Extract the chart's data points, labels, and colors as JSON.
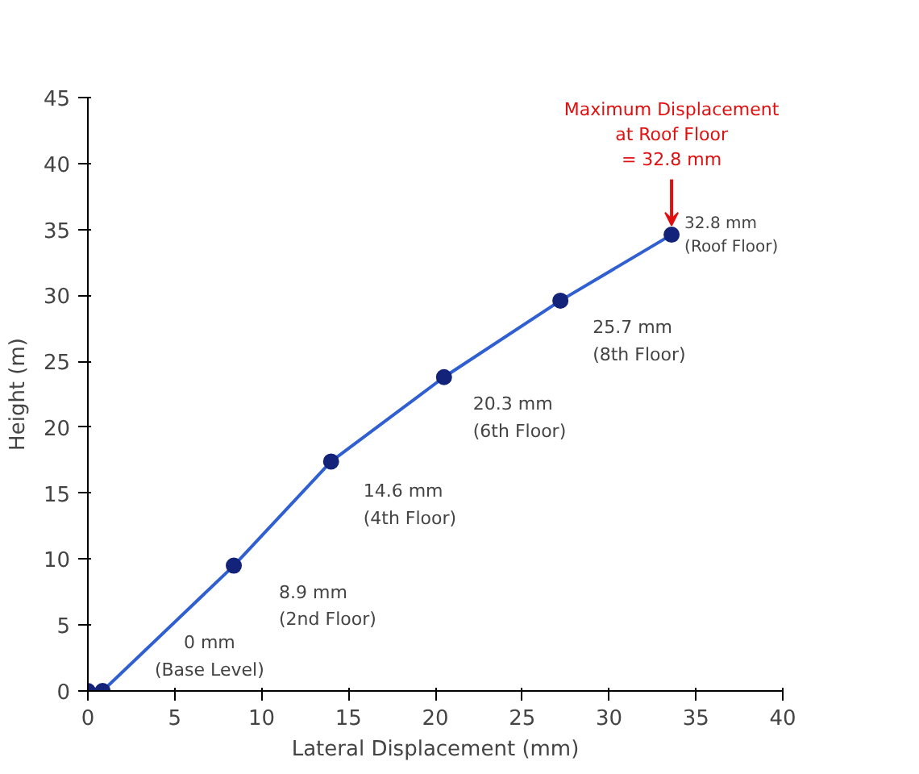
{
  "chart_data": {
    "type": "line",
    "xlabel": "Lateral Displacement (mm)",
    "ylabel": "Height (m)",
    "x": [
      0,
      0.85,
      8.4,
      14.0,
      20.5,
      27.2,
      33.6
    ],
    "series": [
      {
        "color": "#2f5fd0",
        "values": [
          0,
          0,
          9.5,
          17.4,
          23.8,
          29.6,
          34.6
        ]
      }
    ],
    "xlim": [
      0,
      40
    ],
    "ylim": [
      0,
      45
    ],
    "xticks": [
      0,
      5,
      10,
      15,
      20,
      25,
      30,
      35,
      40
    ],
    "yticks": [
      0,
      5,
      10,
      15,
      20,
      25,
      30,
      35,
      40,
      45
    ],
    "grid": false,
    "marker": "circle",
    "line_style": "solid",
    "annotations": [
      "0 mm\n(Base Level)",
      {
        "text": "8.9 mm\n(2nd Floor)",
        "x": 8.4,
        "y": 9.5
      },
      {
        "text": "14.6 mm\n(4th Floor)",
        "x": 14.0,
        "y": 17.4
      },
      {
        "text": "20.3 mm\n(6th Floor)",
        "x": 20.5,
        "y": 23.8
      },
      {
        "text": "25.7 mm\n(8th Floor)",
        "x": 27.2,
        "y": 29.6
      },
      {
        "text": "32.8 mm\n(Roof Floor)",
        "x": 33.6,
        "y": 34.6
      },
      {
        "text": "Maximum Displacement\nat Roof Floor\n= 32.8 mm",
        "x": 33.6,
        "y": 34.6
      }
    ]
  }
}
